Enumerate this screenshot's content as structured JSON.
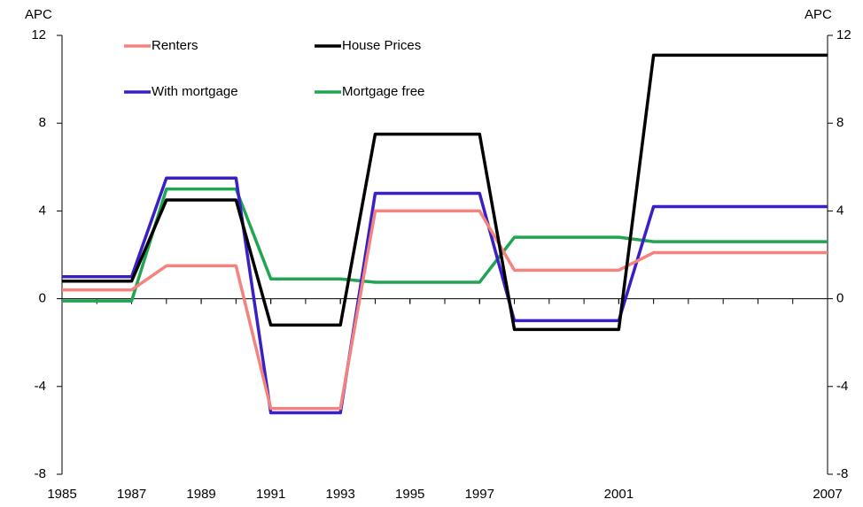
{
  "chart_data": {
    "type": "line",
    "y_label": "APC",
    "y2_label": "APC",
    "x": [
      1985,
      1986,
      1987,
      1988,
      1989,
      1990,
      1991,
      1992,
      1993,
      1994,
      1995,
      1996,
      1997,
      1998,
      1999,
      2000,
      2001,
      2002,
      2003,
      2004,
      2005,
      2006,
      2007
    ],
    "xlim": [
      1985,
      2007
    ],
    "xticks": [
      1985,
      1987,
      1989,
      1991,
      1993,
      1995,
      1997,
      2001,
      2007
    ],
    "ylim": [
      -8,
      12
    ],
    "yticks": [
      -8,
      -4,
      0,
      4,
      8,
      12
    ],
    "y2lim": [
      -8,
      12
    ],
    "y2ticks": [
      -8,
      -4,
      0,
      4,
      8,
      12
    ],
    "grid": false,
    "series": [
      {
        "name": "Renters",
        "color": "#f4837d",
        "values": [
          0.4,
          0.4,
          0.4,
          1.5,
          1.5,
          1.5,
          -5,
          -5,
          -5,
          4,
          4,
          4,
          4,
          1.3,
          1.3,
          1.3,
          1.3,
          2.1,
          2.1,
          2.1,
          2.1,
          2.1,
          2.1
        ]
      },
      {
        "name": "House Prices",
        "color": "#000000",
        "values": [
          0.8,
          0.8,
          0.8,
          4.5,
          4.5,
          4.5,
          -1.2,
          -1.2,
          -1.2,
          7.5,
          7.5,
          7.5,
          7.5,
          -1.4,
          -1.4,
          -1.4,
          -1.4,
          11.1,
          11.1,
          11.1,
          11.1,
          11.1,
          11.1
        ]
      },
      {
        "name": "With mortgage",
        "color": "#3b1fc6",
        "values": [
          1.0,
          1.0,
          1.0,
          5.5,
          5.5,
          5.5,
          -5.2,
          -5.2,
          -5.2,
          4.8,
          4.8,
          4.8,
          4.8,
          -1.0,
          -1.0,
          -1.0,
          -1.0,
          4.2,
          4.2,
          4.2,
          4.2,
          4.2,
          4.2
        ]
      },
      {
        "name": "Mortgage free",
        "color": "#21a553",
        "values": [
          -0.1,
          -0.1,
          -0.1,
          5.0,
          5.0,
          5.0,
          0.9,
          0.9,
          0.9,
          0.75,
          0.75,
          0.75,
          0.75,
          2.8,
          2.8,
          2.8,
          2.8,
          2.6,
          2.6,
          2.6,
          2.6,
          2.6,
          2.6
        ]
      }
    ]
  }
}
